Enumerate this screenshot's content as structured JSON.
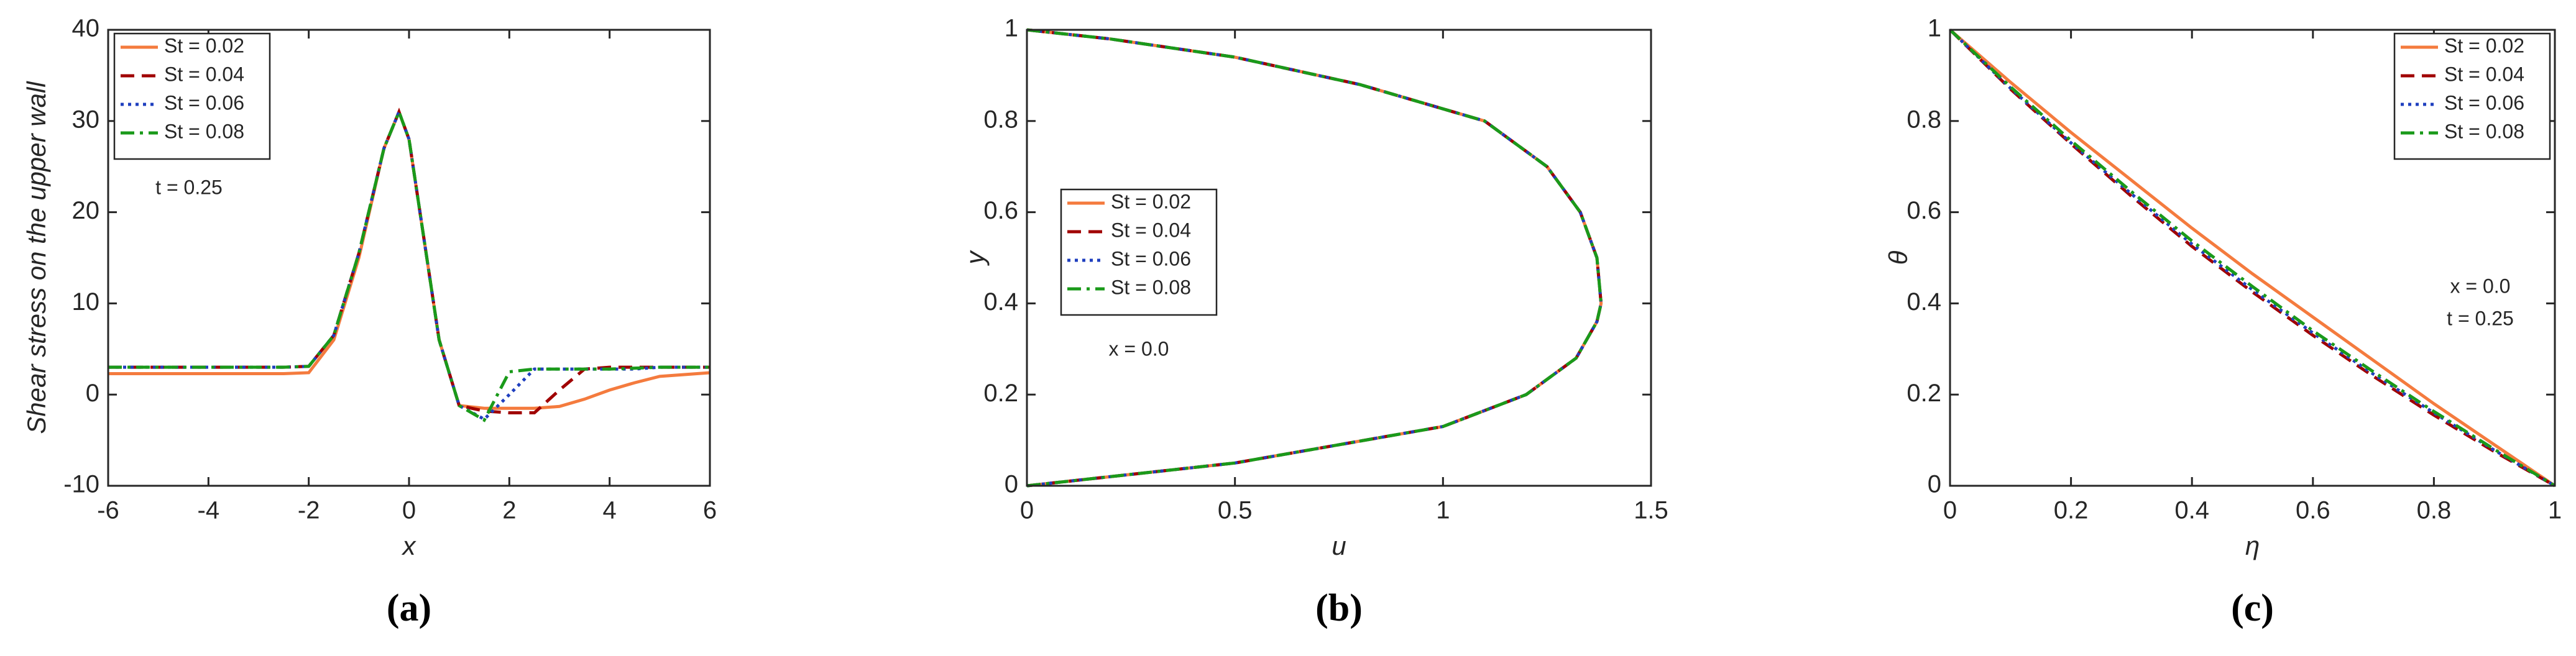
{
  "chart_data": [
    {
      "type": "line",
      "caption": "(a)",
      "xlabel": "x",
      "ylabel": "Shear stress on the upper wall",
      "xlim": [
        -6,
        6
      ],
      "ylim": [
        -10,
        40
      ],
      "xticks": [
        -6,
        -4,
        -2,
        0,
        2,
        4,
        6
      ],
      "yticks": [
        -10,
        0,
        10,
        20,
        30,
        40
      ],
      "legend": "upper left",
      "annotations": [
        "t = 0.25"
      ],
      "x": [
        -6,
        -4,
        -2.5,
        -2,
        -1.5,
        -1,
        -0.5,
        -0.2,
        0,
        0.3,
        0.6,
        1,
        1.5,
        2,
        2.5,
        3,
        3.5,
        4,
        4.5,
        5,
        6
      ],
      "series": [
        {
          "name": "St = 0.02",
          "color": "#f47b3e",
          "style": "solid",
          "values": [
            2.3,
            2.3,
            2.3,
            2.4,
            6,
            15,
            27,
            31,
            28,
            17,
            6,
            -1.2,
            -1.5,
            -1.5,
            -1.5,
            -1.3,
            -0.5,
            0.5,
            1.3,
            2,
            2.4
          ]
        },
        {
          "name": "St = 0.04",
          "color": "#a00000",
          "style": "dashed",
          "values": [
            3,
            3,
            3,
            3.1,
            6.5,
            15.5,
            27,
            31,
            28,
            17,
            6,
            -1.2,
            -1.8,
            -2,
            -2,
            0.5,
            2.8,
            3,
            3,
            3,
            3
          ]
        },
        {
          "name": "St = 0.06",
          "color": "#1f3fbf",
          "style": "dotted",
          "values": [
            3,
            3,
            3,
            3.1,
            6.5,
            15.5,
            27,
            31,
            28,
            17,
            6,
            -1.2,
            -2.7,
            0,
            2.8,
            2.8,
            2.8,
            2.8,
            2.8,
            3,
            3
          ]
        },
        {
          "name": "St = 0.08",
          "color": "#1a9a1a",
          "style": "dashdot",
          "values": [
            3,
            3,
            3,
            3.1,
            6.5,
            15.5,
            27,
            31,
            28,
            17,
            6,
            -1.2,
            -2.8,
            2.5,
            2.8,
            2.8,
            2.8,
            2.8,
            2.9,
            3,
            3
          ]
        }
      ]
    },
    {
      "type": "line",
      "caption": "(b)",
      "xlabel": "u",
      "ylabel": "y",
      "xlim": [
        0,
        1.5
      ],
      "ylim": [
        0,
        1
      ],
      "xticks": [
        0,
        0.5,
        1,
        1.5
      ],
      "yticks": [
        0,
        0.2,
        0.4,
        0.6,
        0.8,
        1
      ],
      "legend": "center left",
      "annotations": [
        "x = 0.0"
      ],
      "x": [
        0,
        0.5,
        1,
        1.2,
        1.32,
        1.37,
        1.38,
        1.37,
        1.33,
        1.25,
        1.1,
        0.8,
        0.5,
        0.2,
        0
      ],
      "series": [
        {
          "name": "St = 0.02",
          "color": "#f47b3e",
          "style": "solid",
          "values": [
            0,
            0.05,
            0.13,
            0.2,
            0.28,
            0.36,
            0.4,
            0.5,
            0.6,
            0.7,
            0.8,
            0.88,
            0.94,
            0.98,
            1
          ]
        },
        {
          "name": "St = 0.04",
          "color": "#a00000",
          "style": "dashed",
          "values": [
            0,
            0.05,
            0.13,
            0.2,
            0.28,
            0.36,
            0.4,
            0.5,
            0.6,
            0.7,
            0.8,
            0.88,
            0.94,
            0.98,
            1
          ]
        },
        {
          "name": "St = 0.06",
          "color": "#1f3fbf",
          "style": "dotted",
          "values": [
            0,
            0.05,
            0.13,
            0.2,
            0.28,
            0.36,
            0.4,
            0.5,
            0.6,
            0.7,
            0.8,
            0.88,
            0.94,
            0.98,
            1
          ]
        },
        {
          "name": "St = 0.08",
          "color": "#1a9a1a",
          "style": "dashdot",
          "values": [
            0,
            0.05,
            0.13,
            0.2,
            0.28,
            0.36,
            0.4,
            0.5,
            0.6,
            0.7,
            0.8,
            0.88,
            0.94,
            0.98,
            1
          ]
        }
      ]
    },
    {
      "type": "line",
      "caption": "(c)",
      "xlabel": "η",
      "ylabel": "θ",
      "xlim": [
        0,
        1
      ],
      "ylim": [
        0,
        1
      ],
      "xticks": [
        0,
        0.2,
        0.4,
        0.6,
        0.8,
        1
      ],
      "yticks": [
        0,
        0.2,
        0.4,
        0.6,
        0.8,
        1
      ],
      "legend": "upper right",
      "annotations": [
        "x = 0.0",
        "t = 0.25"
      ],
      "x": [
        0,
        0.1,
        0.2,
        0.3,
        0.4,
        0.5,
        0.6,
        0.7,
        0.8,
        0.9,
        1
      ],
      "series": [
        {
          "name": "St = 0.02",
          "color": "#f47b3e",
          "style": "solid",
          "values": [
            1,
            0.885,
            0.775,
            0.67,
            0.565,
            0.465,
            0.37,
            0.275,
            0.18,
            0.09,
            0
          ]
        },
        {
          "name": "St = 0.04",
          "color": "#a00000",
          "style": "dashed",
          "values": [
            1,
            0.87,
            0.75,
            0.635,
            0.525,
            0.425,
            0.33,
            0.24,
            0.155,
            0.075,
            0
          ]
        },
        {
          "name": "St = 0.06",
          "color": "#1f3fbf",
          "style": "dotted",
          "values": [
            1,
            0.872,
            0.752,
            0.64,
            0.53,
            0.43,
            0.335,
            0.245,
            0.16,
            0.078,
            0
          ]
        },
        {
          "name": "St = 0.08",
          "color": "#1a9a1a",
          "style": "dashdot",
          "values": [
            1,
            0.875,
            0.757,
            0.645,
            0.537,
            0.437,
            0.34,
            0.25,
            0.163,
            0.08,
            0
          ]
        }
      ]
    }
  ]
}
